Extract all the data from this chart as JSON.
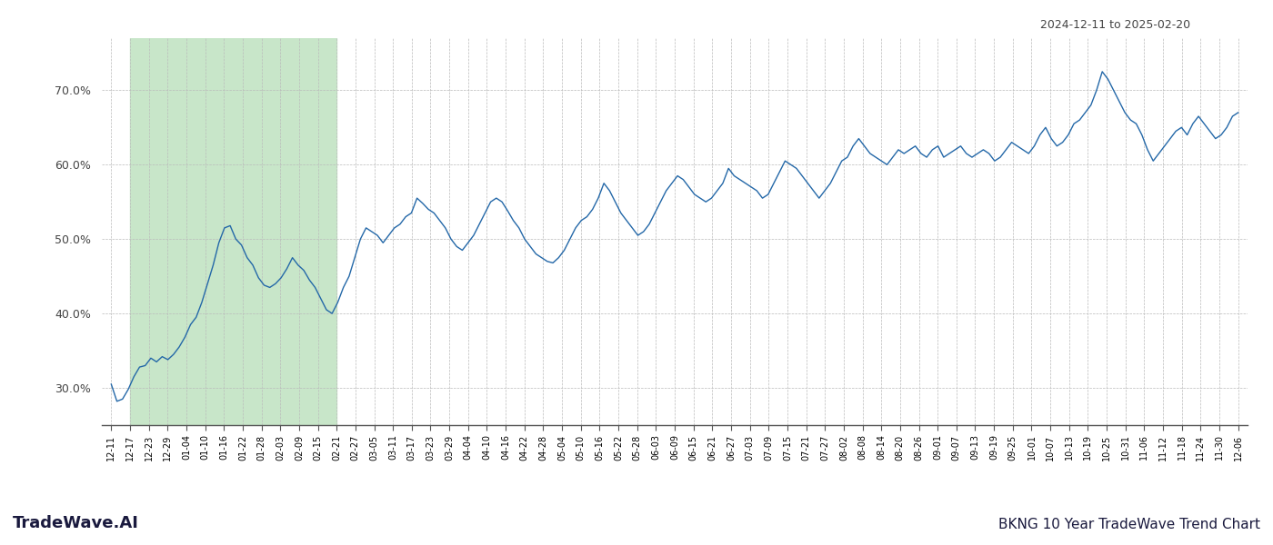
{
  "title_top_right": "2024-12-11 to 2025-02-20",
  "title_bottom_left": "TradeWave.AI",
  "title_bottom_right": "BKNG 10 Year TradeWave Trend Chart",
  "line_color": "#2468a8",
  "shaded_region_color": "#c8e6c9",
  "background_color": "#ffffff",
  "grid_color": "#bbbbbb",
  "ylim": [
    25.0,
    77.0
  ],
  "yticks": [
    30,
    40,
    50,
    60,
    70
  ],
  "green_shade_start_label": "12-17",
  "green_shade_end_label": "02-21",
  "x_labels": [
    "12-11",
    "12-17",
    "12-23",
    "12-29",
    "01-04",
    "01-10",
    "01-16",
    "01-22",
    "01-28",
    "02-03",
    "02-09",
    "02-15",
    "02-21",
    "02-27",
    "03-05",
    "03-11",
    "03-17",
    "03-23",
    "03-29",
    "04-04",
    "04-10",
    "04-16",
    "04-22",
    "04-28",
    "05-04",
    "05-10",
    "05-16",
    "05-22",
    "05-28",
    "06-03",
    "06-09",
    "06-15",
    "06-21",
    "06-27",
    "07-03",
    "07-09",
    "07-15",
    "07-21",
    "07-27",
    "08-02",
    "08-08",
    "08-14",
    "08-20",
    "08-26",
    "09-01",
    "09-07",
    "09-13",
    "09-19",
    "09-25",
    "10-01",
    "10-07",
    "10-13",
    "10-19",
    "10-25",
    "10-31",
    "11-06",
    "11-12",
    "11-18",
    "11-24",
    "11-30",
    "12-06"
  ],
  "values": [
    30.5,
    28.2,
    28.5,
    29.8,
    31.5,
    32.8,
    33.0,
    34.0,
    33.5,
    34.2,
    33.8,
    34.5,
    35.5,
    36.8,
    38.5,
    39.5,
    41.5,
    44.0,
    46.5,
    49.5,
    51.5,
    51.8,
    50.0,
    49.2,
    47.5,
    46.5,
    44.8,
    43.8,
    43.5,
    44.0,
    44.8,
    46.0,
    47.5,
    46.5,
    45.8,
    44.5,
    43.5,
    42.0,
    40.5,
    40.0,
    41.5,
    43.5,
    45.0,
    47.5,
    50.0,
    51.5,
    51.0,
    50.5,
    49.5,
    50.5,
    51.5,
    52.0,
    53.0,
    53.5,
    55.5,
    54.8,
    54.0,
    53.5,
    52.5,
    51.5,
    50.0,
    49.0,
    48.5,
    49.5,
    50.5,
    52.0,
    53.5,
    55.0,
    55.5,
    55.0,
    53.8,
    52.5,
    51.5,
    50.0,
    49.0,
    48.0,
    47.5,
    47.0,
    46.8,
    47.5,
    48.5,
    50.0,
    51.5,
    52.5,
    53.0,
    54.0,
    55.5,
    57.5,
    56.5,
    55.0,
    53.5,
    52.5,
    51.5,
    50.5,
    51.0,
    52.0,
    53.5,
    55.0,
    56.5,
    57.5,
    58.5,
    58.0,
    57.0,
    56.0,
    55.5,
    55.0,
    55.5,
    56.5,
    57.5,
    59.5,
    58.5,
    58.0,
    57.5,
    57.0,
    56.5,
    55.5,
    56.0,
    57.5,
    59.0,
    60.5,
    60.0,
    59.5,
    58.5,
    57.5,
    56.5,
    55.5,
    56.5,
    57.5,
    59.0,
    60.5,
    61.0,
    62.5,
    63.5,
    62.5,
    61.5,
    61.0,
    60.5,
    60.0,
    61.0,
    62.0,
    61.5,
    62.0,
    62.5,
    61.5,
    61.0,
    62.0,
    62.5,
    61.0,
    61.5,
    62.0,
    62.5,
    61.5,
    61.0,
    61.5,
    62.0,
    61.5,
    60.5,
    61.0,
    62.0,
    63.0,
    62.5,
    62.0,
    61.5,
    62.5,
    64.0,
    65.0,
    63.5,
    62.5,
    63.0,
    64.0,
    65.5,
    66.0,
    67.0,
    68.0,
    70.0,
    72.5,
    71.5,
    70.0,
    68.5,
    67.0,
    66.0,
    65.5,
    64.0,
    62.0,
    60.5,
    61.5,
    62.5,
    63.5,
    64.5,
    65.0,
    64.0,
    65.5,
    66.5,
    65.5,
    64.5,
    63.5,
    64.0,
    65.0,
    66.5,
    67.0
  ]
}
